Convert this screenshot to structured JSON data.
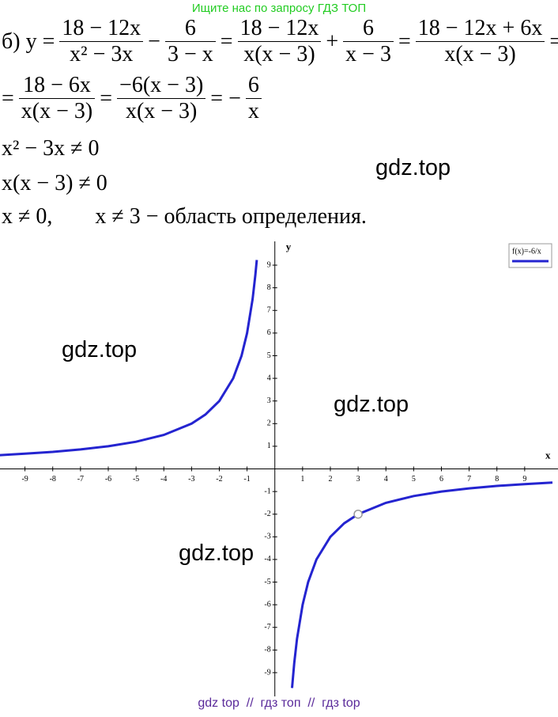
{
  "header": "Ищите нас по запросу ГДЗ ТОП",
  "solution": [
    {
      "items": [
        {
          "t": "б)  y ="
        },
        {
          "num": "18 − 12x",
          "den": "x² − 3x"
        },
        {
          "t": "−"
        },
        {
          "num": "6",
          "den": "3 − x"
        },
        {
          "t": "="
        },
        {
          "num": "18 − 12x",
          "den": "x(x − 3)"
        },
        {
          "t": "+"
        },
        {
          "num": "6",
          "den": "x − 3"
        },
        {
          "t": "="
        },
        {
          "num": "18 − 12x + 6x",
          "den": "x(x − 3)"
        },
        {
          "t": "="
        }
      ]
    },
    {
      "items": [
        {
          "t": "="
        },
        {
          "num": "18 − 6x",
          "den": "x(x − 3)"
        },
        {
          "t": "="
        },
        {
          "num": "−6(x − 3)",
          "den": "x(x − 3)"
        },
        {
          "t": "= −"
        },
        {
          "num": "6",
          "den": "x"
        }
      ]
    },
    {
      "items": [
        {
          "t": "x² − 3x ≠ 0"
        }
      ]
    },
    {
      "items": [
        {
          "t": "x(x − 3) ≠ 0"
        }
      ]
    },
    {
      "items": [
        {
          "t": "x ≠ 0,"
        },
        {
          "t": "x ≠ 3 − область определения."
        }
      ]
    }
  ],
  "watermarks": [
    "gdz.top",
    "gdz.top",
    "gdz.top",
    "gdz.top"
  ],
  "graph": {
    "x_label": "x",
    "y_label": "y",
    "legend": "f(x)=-6/x",
    "color": "#2424d0",
    "xlim": [
      -9.9,
      10.2
    ],
    "ylim": [
      -10.05,
      10.05
    ],
    "xticks": [
      -9,
      -8,
      -7,
      -6,
      -5,
      -4,
      -3,
      -2,
      -1,
      1,
      2,
      3,
      4,
      5,
      6,
      7,
      8,
      9
    ],
    "yticks": [
      -9,
      -8,
      -7,
      -6,
      -5,
      -4,
      -3,
      -2,
      -1,
      1,
      2,
      3,
      4,
      5,
      6,
      7,
      8,
      9
    ],
    "curve": {
      "x": [
        -10,
        -9,
        -8,
        -7,
        -6,
        -5,
        -4,
        -3,
        -2.5,
        -2,
        -1.5,
        -1.2,
        -1,
        -0.8,
        -0.7,
        -0.65,
        null,
        0.62,
        0.7,
        0.8,
        1,
        1.2,
        1.5,
        2,
        2.5,
        3,
        4,
        5,
        6,
        7,
        8,
        9,
        10
      ],
      "y": [
        0.6,
        0.67,
        0.75,
        0.86,
        1,
        1.2,
        1.5,
        2,
        2.4,
        3,
        4,
        5,
        6,
        7.5,
        8.57,
        9.23,
        null,
        -9.68,
        -8.57,
        -7.5,
        -6,
        -5,
        -4,
        -3,
        -2.4,
        -2,
        -1.5,
        -1.2,
        -1,
        -0.86,
        -0.75,
        -0.67,
        -0.6
      ]
    },
    "hole": {
      "x": 3,
      "y": -2
    }
  },
  "footer": "gdz top  //  гдз топ  //  гдз top"
}
